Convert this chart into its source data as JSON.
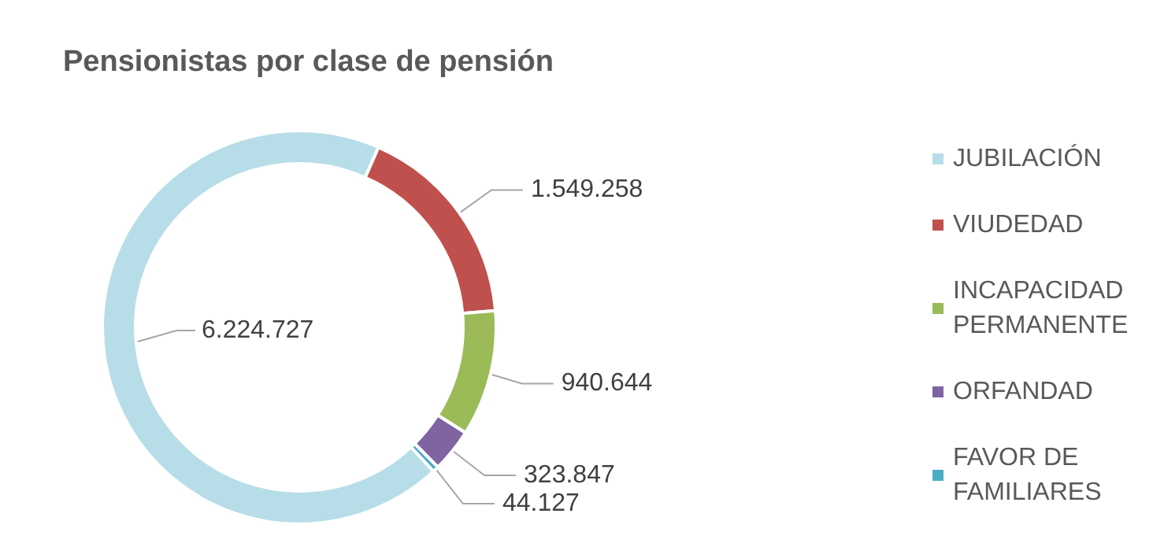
{
  "chart_data": {
    "type": "donut",
    "title": "Pensionistas por clase de pensión",
    "categories": [
      "JUBILACIÓN",
      "VIUDEDAD",
      "INCAPACIDAD PERMANENTE",
      "ORFANDAD",
      "FAVOR DE FAMILIARES"
    ],
    "values": [
      6224727,
      1549258,
      940644,
      323847,
      44127
    ],
    "value_labels": [
      "6.224.727",
      "1.549.258",
      "940.644",
      "323.847",
      "44.127"
    ],
    "colors": [
      "#b7dde8",
      "#c0504d",
      "#9bbb59",
      "#8064a2",
      "#4bacc6"
    ],
    "legend": "right"
  }
}
